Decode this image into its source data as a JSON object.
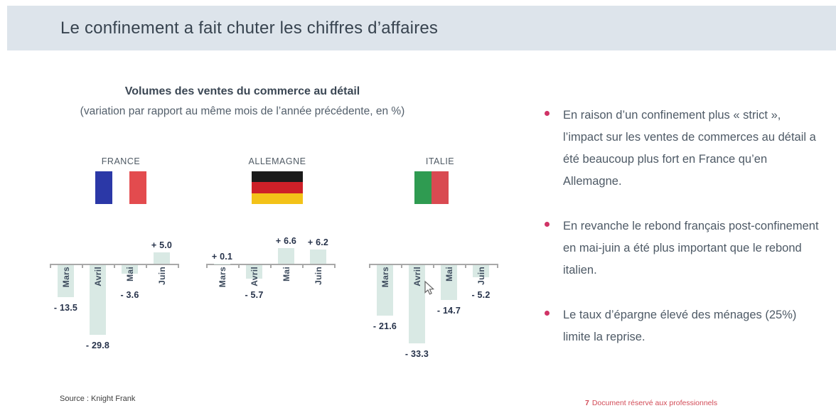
{
  "slide": {
    "title": "Le confinement a fait chuter les chiffres d’affaires",
    "source": "Source : Knight Frank",
    "footer": {
      "page": "7",
      "text": "Document réservé aux professionnels"
    }
  },
  "chart_data": {
    "type": "bar",
    "title": "Volumes des ventes du commerce au détail",
    "subtitle": "(variation par rapport au même mois de l’année précédente, en %)",
    "unit": "%",
    "categories": [
      "Mars",
      "Avril",
      "Mai",
      "Juin"
    ],
    "series": [
      {
        "name": "FRANCE",
        "values": [
          -13.5,
          -29.8,
          -3.6,
          5.0
        ],
        "value_labels": [
          "- 13.5",
          "- 29.8",
          "- 3.6",
          "+ 5.0"
        ],
        "flag_layout": "vertical",
        "flag_colors": [
          "#2b38a7",
          "#ffffff",
          "#e34b4e"
        ]
      },
      {
        "name": "ALLEMAGNE",
        "values": [
          0.1,
          -5.7,
          6.6,
          6.2
        ],
        "value_labels": [
          "+ 0.1",
          "- 5.7",
          "+ 6.6",
          "+ 6.2"
        ],
        "flag_layout": "horizontal",
        "flag_colors": [
          "#1a1a1a",
          "#cd2028",
          "#f3c218"
        ]
      },
      {
        "name": "ITALIE",
        "values": [
          -21.6,
          -33.3,
          -14.7,
          -5.2
        ],
        "value_labels": [
          "- 21.6",
          "- 33.3",
          "- 14.7",
          "- 5.2"
        ],
        "flag_layout": "vertical",
        "flag_colors": [
          "#2f9b51",
          "#d94a51",
          "#ffffff"
        ]
      }
    ],
    "bar_color": "#d9e9e4",
    "axis_color": "#a9a9a9",
    "grid": false,
    "legend": "none",
    "ylim": [
      -35,
      10
    ]
  },
  "bullets": {
    "marker_color": "#d03366",
    "items": [
      {
        "text": "En raison d’un confinement plus « strict », l’impact sur les ventes de commerces au détail a été beaucoup plus fort en France qu’en Allemagne."
      },
      {
        "text": "En revanche le rebond français post-confinement en mai-juin a été plus important que le rebond italien."
      },
      {
        "text": "Le taux d’épargne élevé des ménages (25%) limite la reprise."
      }
    ]
  }
}
